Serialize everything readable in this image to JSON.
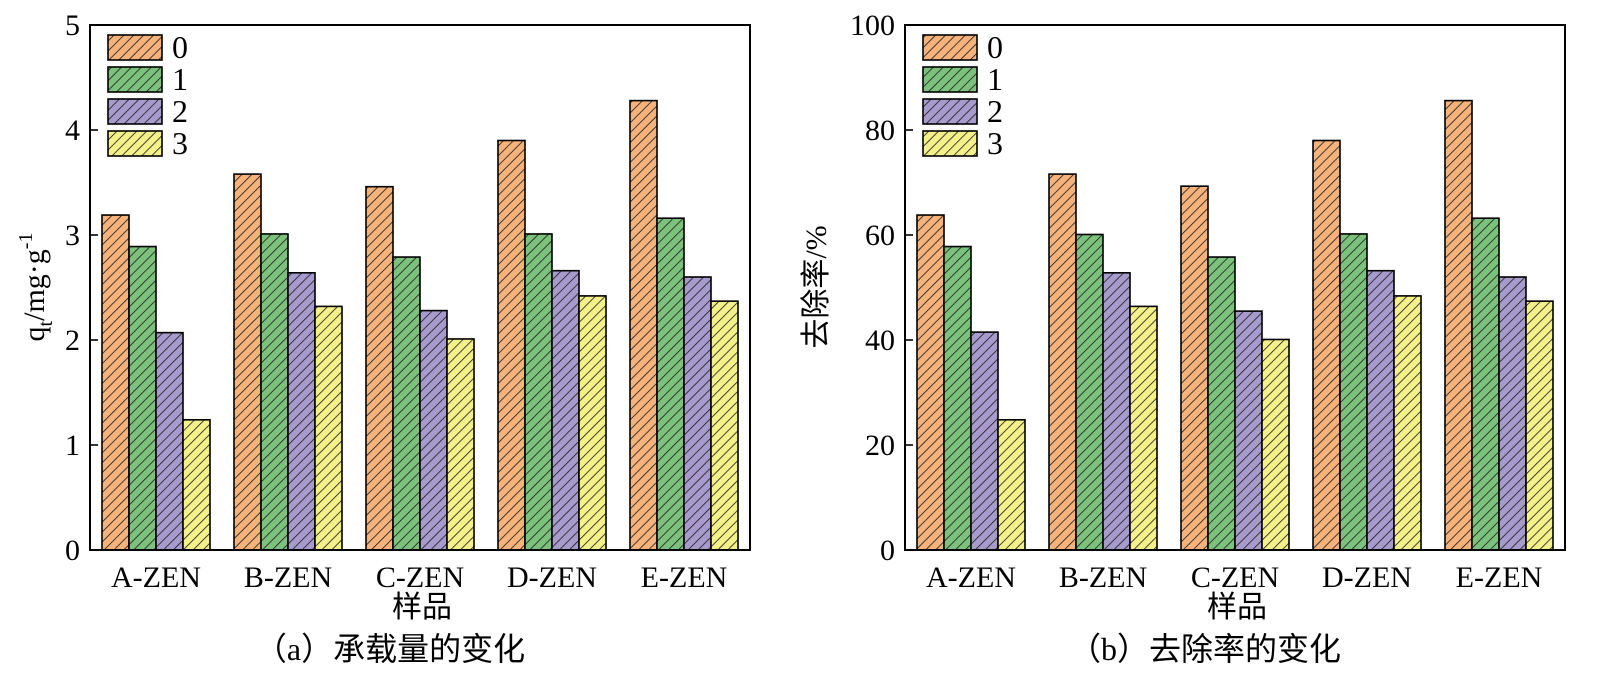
{
  "colors": {
    "series": [
      "#f5b27a",
      "#7cc27c",
      "#a79bcd",
      "#f4f08a"
    ],
    "hatch": "#1a1a1a"
  },
  "chart_data": [
    {
      "type": "bar",
      "panel": "a",
      "caption": "（a）承载量的变化",
      "xlabel": "样品",
      "ylabel_main": "q",
      "ylabel_sub": "t",
      "ylabel_rest": "/mg·g",
      "ylabel_sup": "-1",
      "categories": [
        "A-ZEN",
        "B-ZEN",
        "C-ZEN",
        "D-ZEN",
        "E-ZEN"
      ],
      "ylim": [
        0,
        5
      ],
      "yticks": [
        0,
        1,
        2,
        3,
        4,
        5
      ],
      "ytick_labels": [
        "0",
        "1",
        "2",
        "3",
        "4",
        "5"
      ],
      "legend_position": "top-left",
      "series": [
        {
          "name": "0",
          "values": [
            3.19,
            3.58,
            3.46,
            3.9,
            4.28
          ]
        },
        {
          "name": "1",
          "values": [
            2.89,
            3.01,
            2.79,
            3.01,
            3.16
          ]
        },
        {
          "name": "2",
          "values": [
            2.07,
            2.64,
            2.28,
            2.66,
            2.6
          ]
        },
        {
          "name": "3",
          "values": [
            1.24,
            2.32,
            2.01,
            2.42,
            2.37
          ]
        }
      ]
    },
    {
      "type": "bar",
      "panel": "b",
      "caption": "（b）去除率的变化",
      "xlabel": "样品",
      "ylabel_main": "去除率/%",
      "categories": [
        "A-ZEN",
        "B-ZEN",
        "C-ZEN",
        "D-ZEN",
        "E-ZEN"
      ],
      "ylim": [
        0,
        100
      ],
      "yticks": [
        0,
        20,
        40,
        60,
        80,
        100
      ],
      "ytick_labels": [
        "0",
        "20",
        "40",
        "60",
        "80",
        "100"
      ],
      "legend_position": "top-left",
      "series": [
        {
          "name": "0",
          "values": [
            63.8,
            71.6,
            69.3,
            78.0,
            85.6
          ]
        },
        {
          "name": "1",
          "values": [
            57.8,
            60.1,
            55.8,
            60.2,
            63.2
          ]
        },
        {
          "name": "2",
          "values": [
            41.5,
            52.8,
            45.5,
            53.2,
            52.0
          ]
        },
        {
          "name": "3",
          "values": [
            24.8,
            46.4,
            40.1,
            48.4,
            47.4
          ]
        }
      ]
    }
  ]
}
